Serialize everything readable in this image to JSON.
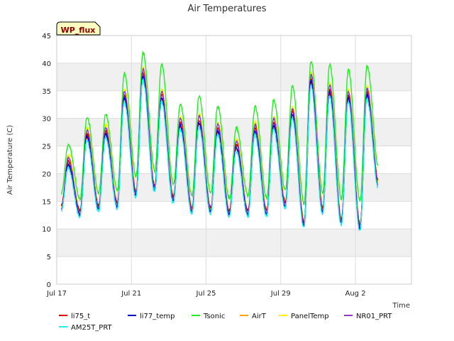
{
  "chart_data": {
    "type": "line",
    "title": "Air Temperatures",
    "xlabel": "Time",
    "ylabel": "Air Temperature (C)",
    "site_badge": "WP_flux",
    "ylim": [
      0,
      45
    ],
    "yticks": [
      0,
      5,
      10,
      15,
      20,
      25,
      30,
      35,
      40,
      45
    ],
    "xlim": [
      "2023-07-17",
      "2023-08-05"
    ],
    "xticks": [
      {
        "date": "2023-07-17",
        "label": "Jul 17"
      },
      {
        "date": "2023-07-21",
        "label": "Jul 21"
      },
      {
        "date": "2023-07-25",
        "label": "Jul 25"
      },
      {
        "date": "2023-07-29",
        "label": "Jul 29"
      },
      {
        "date": "2023-08-02",
        "label": "Aug 2"
      }
    ],
    "grid": true,
    "legend_position": "bottom",
    "series_colors": {
      "li75_t": "#dd0000",
      "li77_temp": "#0000cc",
      "Tsonic": "#22ee22",
      "AirT": "#ffa500",
      "PanelTemp": "#ffee00",
      "NR01_PRT": "#9932cc",
      "AM25T_PRT": "#22eeee"
    },
    "series_names": [
      "li75_t",
      "li77_temp",
      "Tsonic",
      "AirT",
      "PanelTemp",
      "NR01_PRT",
      "AM25T_PRT"
    ],
    "daily": [
      {
        "date": "2023-07-17",
        "tsonic_min": 16.5,
        "tsonic_max": 25.3,
        "min": 13.5,
        "max": 22.5
      },
      {
        "date": "2023-07-18",
        "tsonic_min": 15.5,
        "tsonic_max": 30.2,
        "min": 12.5,
        "max": 27.5
      },
      {
        "date": "2023-07-19",
        "tsonic_min": 16.5,
        "tsonic_max": 30.8,
        "min": 13.5,
        "max": 28.0
      },
      {
        "date": "2023-07-20",
        "tsonic_min": 17.0,
        "tsonic_max": 38.2,
        "min": 14.0,
        "max": 34.5
      },
      {
        "date": "2023-07-21",
        "tsonic_min": 19.5,
        "tsonic_max": 42.0,
        "min": 16.0,
        "max": 38.5
      },
      {
        "date": "2023-07-22",
        "tsonic_min": 20.5,
        "tsonic_max": 39.8,
        "min": 17.0,
        "max": 34.5
      },
      {
        "date": "2023-07-23",
        "tsonic_min": 18.0,
        "tsonic_max": 32.5,
        "min": 15.0,
        "max": 29.5
      },
      {
        "date": "2023-07-24",
        "tsonic_min": 16.0,
        "tsonic_max": 34.0,
        "min": 13.0,
        "max": 30.0
      },
      {
        "date": "2023-07-25",
        "tsonic_min": 16.5,
        "tsonic_max": 32.2,
        "min": 13.0,
        "max": 28.5
      },
      {
        "date": "2023-07-26",
        "tsonic_min": 15.5,
        "tsonic_max": 28.3,
        "min": 12.5,
        "max": 25.5
      },
      {
        "date": "2023-07-27",
        "tsonic_min": 16.0,
        "tsonic_max": 32.2,
        "min": 12.5,
        "max": 28.5
      },
      {
        "date": "2023-07-28",
        "tsonic_min": 15.5,
        "tsonic_max": 33.3,
        "min": 12.5,
        "max": 29.5
      },
      {
        "date": "2023-07-29",
        "tsonic_min": 17.0,
        "tsonic_max": 35.8,
        "min": 14.0,
        "max": 31.5
      },
      {
        "date": "2023-07-30",
        "tsonic_min": 14.5,
        "tsonic_max": 40.3,
        "min": 10.5,
        "max": 37.5
      },
      {
        "date": "2023-07-31",
        "tsonic_min": 16.5,
        "tsonic_max": 39.8,
        "min": 13.0,
        "max": 35.5
      },
      {
        "date": "2023-08-01",
        "tsonic_min": 15.5,
        "tsonic_max": 38.8,
        "min": 11.0,
        "max": 34.5
      },
      {
        "date": "2023-08-02",
        "tsonic_min": 15.0,
        "tsonic_max": 39.5,
        "min": 10.0,
        "max": 35.0
      },
      {
        "date": "2023-08-03",
        "tsonic_min": 21.0,
        "tsonic_max": 21.0,
        "min": 17.5,
        "max": 17.5
      }
    ]
  }
}
